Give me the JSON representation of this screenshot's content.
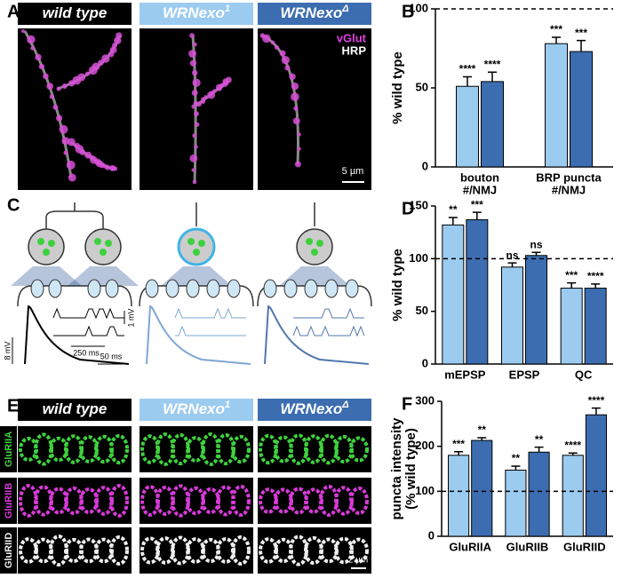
{
  "panel_letters": [
    "A",
    "B",
    "C",
    "D",
    "E",
    "F"
  ],
  "panel_a": {
    "headers": [
      {
        "text": "wild type"
      },
      {
        "text": "WRNexo",
        "sup": "1"
      },
      {
        "text": "WRNexo",
        "sup": "Δ"
      }
    ],
    "stain_labels": [
      "vGlut",
      "HRP"
    ],
    "scale_bar": "5 µm"
  },
  "panel_c": {
    "scale_labels": [
      "8 mV",
      "50 ms",
      "250 ms",
      "1 mV"
    ]
  },
  "panel_e": {
    "headers": [
      {
        "text": "wild type"
      },
      {
        "text": "WRNexo",
        "sup": "1"
      },
      {
        "text": "WRNexo",
        "sup": "Δ"
      }
    ],
    "row_labels": [
      "GluRIIA",
      "GluRIIB",
      "GluRIID"
    ],
    "scale_bar": "2 µm"
  },
  "chart_data": [
    {
      "type": "bar",
      "ylabel": [
        "% wild type"
      ],
      "categories": [
        [
          "bouton",
          "#/NMJ"
        ],
        [
          "BRP puncta",
          "#/NMJ"
        ]
      ],
      "series": [
        {
          "color": "#9ccbf0",
          "values": [
            51,
            78
          ],
          "errors": [
            6,
            4
          ],
          "labels": [
            "****",
            "***"
          ]
        },
        {
          "color": "#3c6db0",
          "values": [
            54,
            73
          ],
          "errors": [
            6,
            7
          ],
          "labels": [
            "****",
            "***"
          ]
        }
      ],
      "ylim": [
        0,
        100
      ],
      "yticks": [
        0,
        50,
        100
      ],
      "ref_line": 100
    },
    {
      "type": "bar",
      "ylabel": [
        "% wild type"
      ],
      "categories": [
        [
          "mEPSP"
        ],
        [
          "EPSP"
        ],
        [
          "QC"
        ]
      ],
      "series": [
        {
          "color": "#9ccbf0",
          "values": [
            132,
            92,
            72
          ],
          "errors": [
            7,
            4,
            5
          ],
          "labels": [
            "**",
            "ns",
            "***"
          ]
        },
        {
          "color": "#3c6db0",
          "values": [
            137,
            103,
            72
          ],
          "errors": [
            7,
            3,
            4
          ],
          "labels": [
            "***",
            "ns",
            "****"
          ]
        }
      ],
      "ylim": [
        0,
        150
      ],
      "yticks": [
        0,
        50,
        100,
        150
      ],
      "ref_line": 100
    },
    {
      "type": "bar",
      "ylabel": [
        "puncta intensity",
        "(% wild type)"
      ],
      "categories": [
        [
          "GluRIIA"
        ],
        [
          "GluRIIB"
        ],
        [
          "GluRIID"
        ]
      ],
      "series": [
        {
          "color": "#9ccbf0",
          "values": [
            180,
            147,
            180
          ],
          "errors": [
            8,
            9,
            5
          ],
          "labels": [
            "***",
            "**",
            "****"
          ]
        },
        {
          "color": "#3c6db0",
          "values": [
            213,
            187,
            270
          ],
          "errors": [
            6,
            11,
            15
          ],
          "labels": [
            "**",
            "**",
            "****"
          ]
        }
      ],
      "ylim": [
        0,
        300
      ],
      "yticks": [
        0,
        100,
        200,
        300
      ],
      "ref_line": 100
    }
  ]
}
